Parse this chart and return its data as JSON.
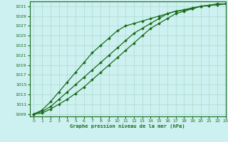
{
  "title": "Graphe pression niveau de la mer (hPa)",
  "background_color": "#cdf0f0",
  "grid_color": "#aaddcc",
  "line_color": "#1a6b1a",
  "xlim": [
    -0.5,
    23
  ],
  "ylim": [
    1008.5,
    1032
  ],
  "yticks": [
    1009,
    1011,
    1013,
    1015,
    1017,
    1019,
    1021,
    1023,
    1025,
    1027,
    1029,
    1031
  ],
  "xticks": [
    0,
    1,
    2,
    3,
    4,
    5,
    6,
    7,
    8,
    9,
    10,
    11,
    12,
    13,
    14,
    15,
    16,
    17,
    18,
    19,
    20,
    21,
    22,
    23
  ],
  "series": [
    [
      1009,
      1009.2,
      1010.0,
      1011.0,
      1012.0,
      1013.2,
      1014.5,
      1016.0,
      1017.5,
      1019.0,
      1020.5,
      1022.0,
      1023.5,
      1025.0,
      1026.5,
      1027.5,
      1028.5,
      1029.5,
      1030.0,
      1030.5,
      1031.0,
      1031.2,
      1031.5,
      1031.5
    ],
    [
      1009,
      1009.5,
      1010.5,
      1012.0,
      1013.5,
      1015.0,
      1016.5,
      1018.0,
      1019.5,
      1021.0,
      1022.5,
      1024.0,
      1025.5,
      1026.5,
      1027.5,
      1028.5,
      1029.5,
      1030.0,
      1030.2,
      1030.5,
      1031.0,
      1031.2,
      1031.3,
      1031.5
    ],
    [
      1009,
      1009.8,
      1011.5,
      1013.5,
      1015.5,
      1017.5,
      1019.5,
      1021.5,
      1023.0,
      1024.5,
      1026.0,
      1027.0,
      1027.5,
      1028.0,
      1028.5,
      1029.0,
      1029.5,
      1030.0,
      1030.3,
      1030.7,
      1031.0,
      1031.2,
      1031.4,
      1031.5
    ]
  ]
}
